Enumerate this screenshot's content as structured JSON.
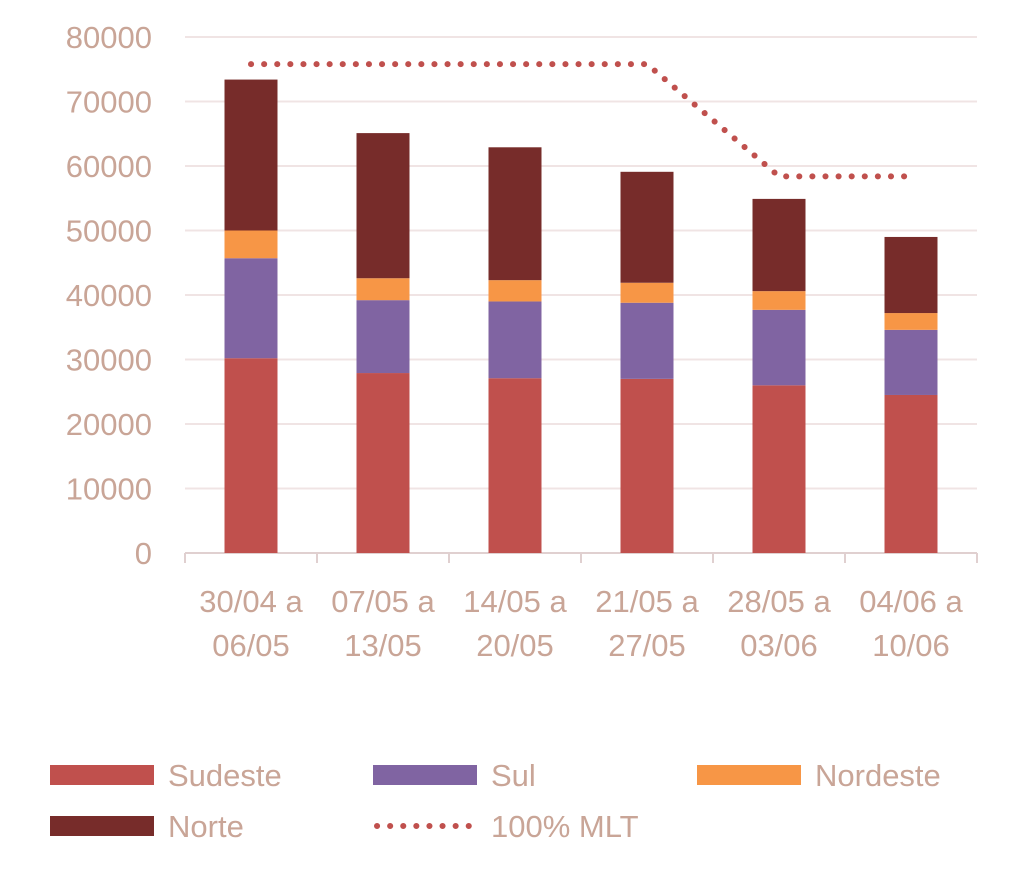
{
  "chart_data": {
    "type": "bar",
    "stacked": true,
    "title": "",
    "xlabel": "",
    "ylabel": "",
    "ylim": [
      0,
      80000
    ],
    "yticks": [
      0,
      10000,
      20000,
      30000,
      40000,
      50000,
      60000,
      70000,
      80000
    ],
    "grid": true,
    "legend_position": "bottom",
    "categories": [
      [
        "30/04 a",
        "06/05"
      ],
      [
        "07/05 a",
        "13/05"
      ],
      [
        "14/05 a",
        "20/05"
      ],
      [
        "21/05 a",
        "27/05"
      ],
      [
        "28/05 a",
        "03/06"
      ],
      [
        "04/06 a",
        "10/06"
      ]
    ],
    "series": [
      {
        "name": "Sudeste",
        "color": "#c0504d",
        "values": [
          30200,
          27900,
          27100,
          27000,
          26000,
          24500
        ]
      },
      {
        "name": "Sul",
        "color": "#8064a2",
        "values": [
          15500,
          11300,
          11900,
          11800,
          11700,
          10100
        ]
      },
      {
        "name": "Nordeste",
        "color": "#f79646",
        "values": [
          4300,
          3400,
          3300,
          3100,
          2900,
          2600
        ]
      },
      {
        "name": "Norte",
        "color": "#772c2a",
        "values": [
          23400,
          22500,
          20600,
          17200,
          14300,
          11800
        ]
      }
    ],
    "line_series": {
      "name": "100% MLT",
      "color": "#c0504d",
      "style": "dotted",
      "values": [
        75800,
        75800,
        75800,
        75800,
        58400,
        58400
      ]
    }
  }
}
